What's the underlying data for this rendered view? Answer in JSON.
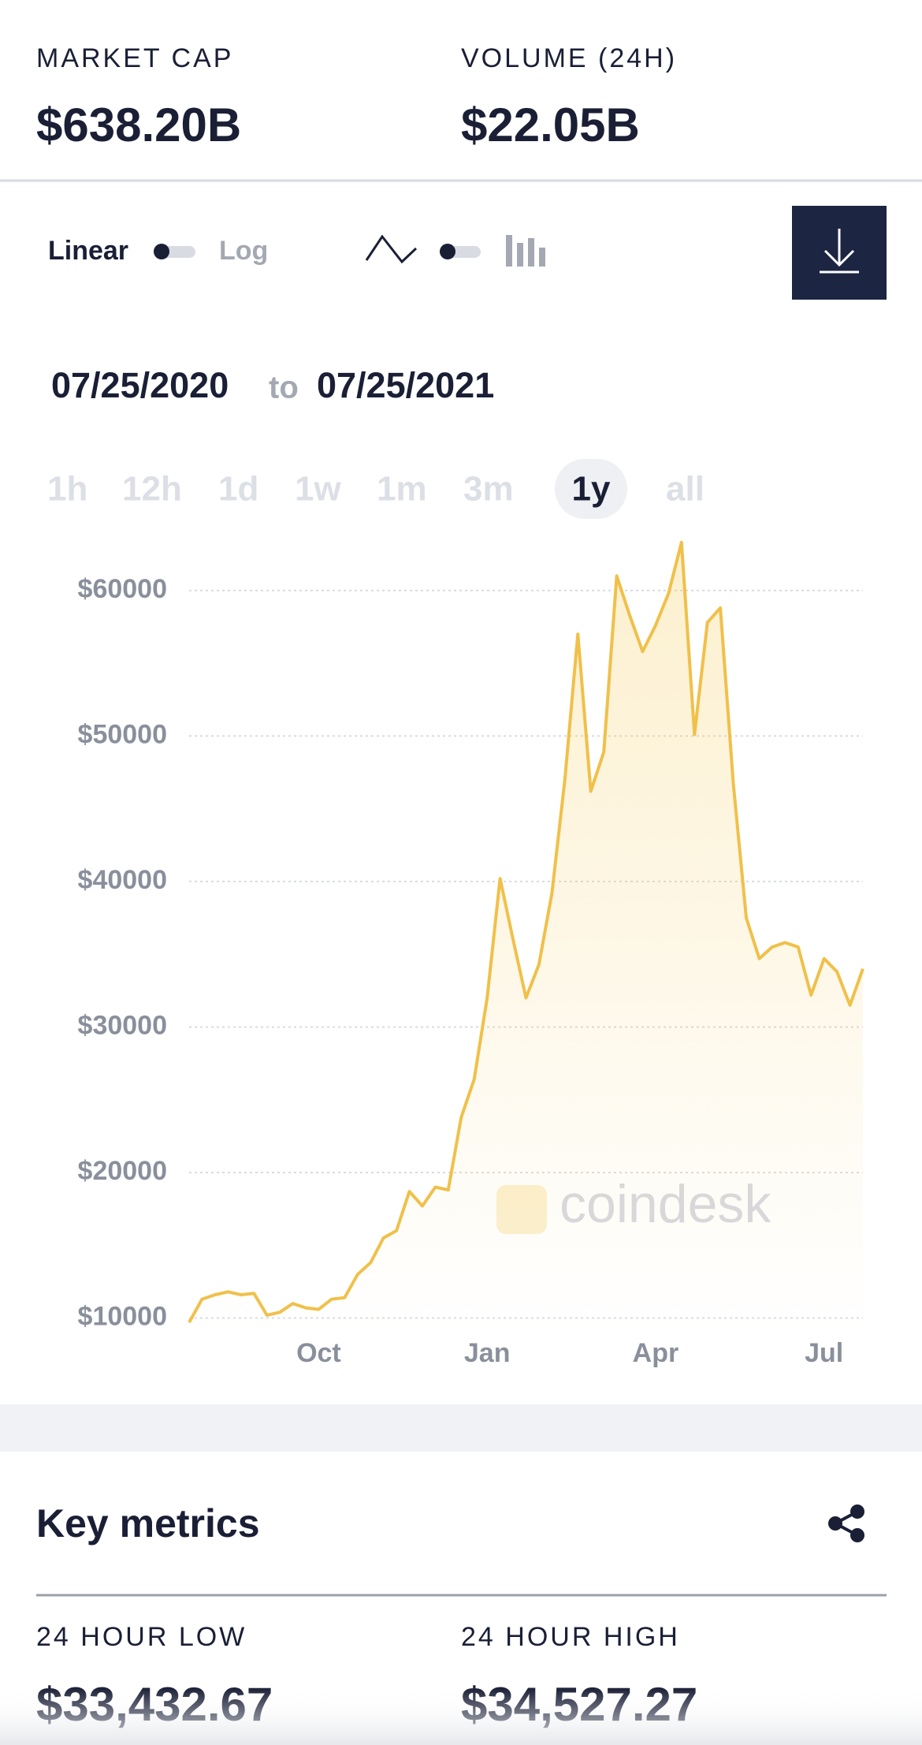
{
  "header": {
    "metrics": [
      {
        "label": "MARKET CAP",
        "value": "$638.20B"
      },
      {
        "label": "VOLUME (24H)",
        "value": "$22.05B"
      }
    ]
  },
  "controls": {
    "scale_options": [
      "Linear",
      "Log"
    ]
  },
  "date_range": {
    "start": "07/25/2020",
    "separator": "to",
    "end": "07/25/2021"
  },
  "timeframes": {
    "options": [
      "1h",
      "12h",
      "1d",
      "1w",
      "1m",
      "3m",
      "1y",
      "all"
    ],
    "selected": 6
  },
  "chart_data": {
    "type": "line",
    "watermark": "coindesk",
    "categories": [
      null,
      null,
      null,
      null,
      null,
      null,
      null,
      null,
      null,
      null,
      "Oct",
      null,
      null,
      null,
      null,
      null,
      null,
      null,
      null,
      null,
      null,
      null,
      null,
      "Jan",
      null,
      null,
      null,
      null,
      null,
      null,
      null,
      null,
      null,
      null,
      null,
      null,
      "Apr",
      null,
      null,
      null,
      null,
      null,
      null,
      null,
      null,
      null,
      null,
      null,
      null,
      "Jul",
      null,
      null,
      null
    ],
    "series": [
      {
        "color": "#f0c04a",
        "values": [
          9700,
          11300,
          11600,
          11800,
          11600,
          11700,
          10200,
          10400,
          11000,
          10700,
          10600,
          11300,
          11400,
          13000,
          13800,
          15500,
          16000,
          18700,
          17700,
          19000,
          18800,
          23800,
          26400,
          32000,
          40200,
          36000,
          32000,
          34300,
          39200,
          47000,
          57000,
          46200,
          48900,
          61000,
          58300,
          55800,
          57600,
          59800,
          63300,
          50100,
          57800,
          58800,
          46700,
          37500,
          34700,
          35500,
          35800,
          35500,
          32200,
          34700,
          33800,
          31500,
          34000
        ]
      }
    ],
    "ylim": [
      9000,
      64000
    ],
    "yticks": [
      {
        "value": 10000,
        "label": "$10000"
      },
      {
        "value": 20000,
        "label": "$20000"
      },
      {
        "value": 30000,
        "label": "$30000"
      },
      {
        "value": 40000,
        "label": "$40000"
      },
      {
        "value": 50000,
        "label": "$50000"
      },
      {
        "value": 60000,
        "label": "$60000"
      }
    ],
    "grid": true
  },
  "key_metrics": {
    "title": "Key metrics",
    "items": [
      {
        "label": "24 HOUR LOW",
        "value": "$33,432.67"
      },
      {
        "label": "24 HOUR HIGH",
        "value": "$34,527.27"
      }
    ]
  }
}
